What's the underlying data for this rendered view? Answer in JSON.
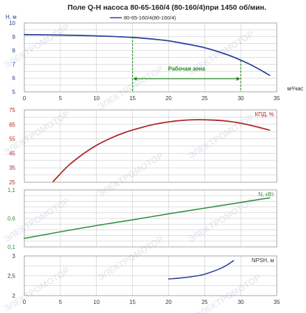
{
  "title": "Поле Q-H насоса 80-65-160/4 (80-160/4)при 1450 об/мин.",
  "legend_label": "80-65-160/4(80-160/4)",
  "watermark": "ЭЛЕКТРОМОТОР",
  "colors": {
    "head": "#2b3f9c",
    "efficiency": "#b02323",
    "power": "#2f8f3a",
    "npsh": "#2b3f9c",
    "zone": "#1e8a1e",
    "grid": "#bfbfbf",
    "head_axis_text": "#1f3c8a",
    "eff_axis_text": "#b02323",
    "power_axis_text": "#2f8f3a",
    "npsh_axis_text": "#333333"
  },
  "chart_data": [
    {
      "type": "line",
      "id": "head",
      "ylabel": "H, м",
      "xlabel": "м³/час",
      "xlim": [
        0,
        35
      ],
      "ylim": [
        5,
        10
      ],
      "x_ticks": [
        "0",
        "5",
        "10",
        "15",
        "20",
        "25",
        "30",
        "35"
      ],
      "y_ticks": [
        "5",
        "6",
        "7",
        "8",
        "9",
        "10"
      ],
      "grid": true,
      "series": [
        {
          "name": "80-65-160/4(80-160/4)",
          "x": [
            0,
            5,
            10,
            15,
            18,
            20,
            22,
            25,
            28,
            30,
            32,
            34
          ],
          "y": [
            9.15,
            9.12,
            9.06,
            8.95,
            8.82,
            8.7,
            8.52,
            8.2,
            7.72,
            7.3,
            6.8,
            6.2
          ]
        }
      ],
      "annotation": {
        "label": "Рабочая зона",
        "x_from": 15,
        "x_to": 30
      }
    },
    {
      "type": "line",
      "id": "efficiency",
      "ylabel": "КПД, %",
      "xlim": [
        0,
        35
      ],
      "ylim": [
        25,
        75
      ],
      "x_ticks": [
        "0",
        "5",
        "10",
        "15",
        "20",
        "25",
        "30",
        "35"
      ],
      "y_ticks": [
        "25",
        "35",
        "45",
        "55",
        "65",
        "75"
      ],
      "grid": true,
      "series": [
        {
          "x": [
            4,
            6,
            8,
            10,
            12,
            14,
            16,
            18,
            20,
            22,
            24,
            26,
            28,
            30,
            32,
            34
          ],
          "y": [
            25.5,
            36,
            44,
            50.5,
            55.5,
            59.5,
            62.5,
            65,
            66.7,
            67.8,
            68.2,
            68,
            67.3,
            65.8,
            63.6,
            61
          ]
        }
      ]
    },
    {
      "type": "line",
      "id": "power",
      "ylabel": "N, кВт",
      "xlim": [
        0,
        35
      ],
      "ylim": [
        0.1,
        1.1
      ],
      "x_ticks": [
        "0",
        "5",
        "10",
        "15",
        "20",
        "25",
        "30",
        "35"
      ],
      "y_ticks": [
        "0,1",
        "0,6",
        "1,1"
      ],
      "grid": true,
      "series": [
        {
          "x": [
            0,
            5,
            10,
            15,
            20,
            25,
            30,
            34
          ],
          "y": [
            0.25,
            0.365,
            0.475,
            0.575,
            0.68,
            0.78,
            0.88,
            0.96
          ]
        }
      ]
    },
    {
      "type": "line",
      "id": "npsh",
      "ylabel": "NPSH, м",
      "xlim": [
        0,
        35
      ],
      "ylim": [
        2,
        3
      ],
      "x_ticks": [
        "0",
        "5",
        "10",
        "15",
        "20",
        "25",
        "30",
        "35"
      ],
      "y_ticks": [
        "2",
        "2,5",
        "3"
      ],
      "grid": true,
      "series": [
        {
          "x": [
            20,
            22,
            24,
            25,
            26,
            27,
            28,
            29
          ],
          "y": [
            2.42,
            2.45,
            2.5,
            2.54,
            2.6,
            2.67,
            2.76,
            2.88
          ]
        }
      ]
    }
  ]
}
